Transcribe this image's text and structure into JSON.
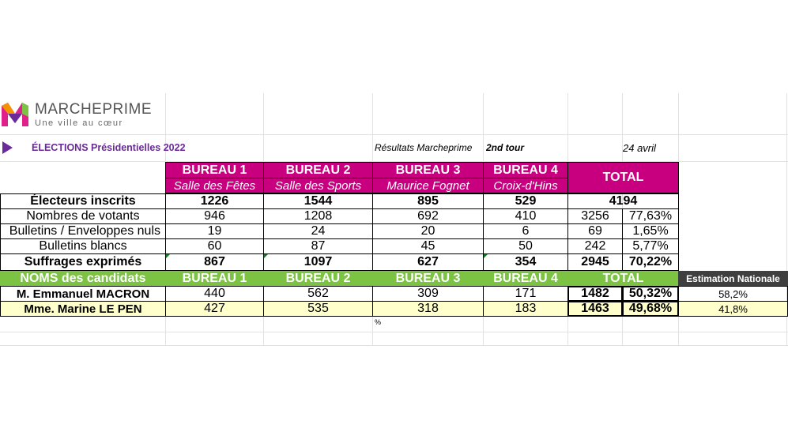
{
  "header": {
    "logo_name": "MARCHEPRIME",
    "logo_tagline": "Une ville au cœur",
    "election_title": "ÉLECTIONS Présidentielles 2022",
    "results_label": "Résultats Marcheprime",
    "round_label": "2nd tour",
    "date_label": "24 avril"
  },
  "bureaus": [
    {
      "name": "BUREAU 1",
      "place": "Salle des Fêtes"
    },
    {
      "name": "BUREAU 2",
      "place": "Salle des Sports"
    },
    {
      "name": "BUREAU 3",
      "place": "Maurice Fognet"
    },
    {
      "name": "BUREAU 4",
      "place": "Croix-d'Hins"
    }
  ],
  "total_label": "TOTAL",
  "stats": {
    "inscrits": {
      "label": "Électeurs inscrits",
      "values": [
        "1226",
        "1544",
        "895",
        "529"
      ],
      "total": "4194"
    },
    "votants": {
      "label": "Nombres de votants",
      "values": [
        "946",
        "1208",
        "692",
        "410"
      ],
      "total": "3256",
      "pct": "77,63%"
    },
    "nuls": {
      "label": "Bulletins / Enveloppes nuls",
      "values": [
        "19",
        "24",
        "20",
        "6"
      ],
      "total": "69",
      "pct": "1,65%"
    },
    "blancs": {
      "label": "Bulletins blancs",
      "values": [
        "60",
        "87",
        "45",
        "50"
      ],
      "total": "242",
      "pct": "5,77%"
    },
    "exprimes": {
      "label": "Suffrages exprimés",
      "values": [
        "867",
        "1097",
        "627",
        "354"
      ],
      "total": "2945",
      "pct": "70,22%"
    }
  },
  "candidates_header": {
    "label": "NOMS des candidats",
    "bureaus": [
      "BUREAU 1",
      "BUREAU 2",
      "BUREAU 3",
      "BUREAU 4"
    ],
    "total": "TOTAL",
    "national": "Estimation Nationale"
  },
  "candidates": [
    {
      "name": "M. Emmanuel MACRON",
      "values": [
        "440",
        "562",
        "309",
        "171"
      ],
      "total": "1482",
      "pct": "50,32%",
      "national": "58,2%"
    },
    {
      "name": "Mme. Marine LE PEN",
      "values": [
        "427",
        "535",
        "318",
        "183"
      ],
      "total": "1463",
      "pct": "49,68%",
      "national": "41,8%"
    }
  ],
  "stray_cell": "%",
  "colors": {
    "magenta": "#c8007f",
    "green": "#7cc243",
    "yellow": "#ffffcc",
    "dark": "#3f3f3f",
    "purple": "#6a2a9a"
  }
}
